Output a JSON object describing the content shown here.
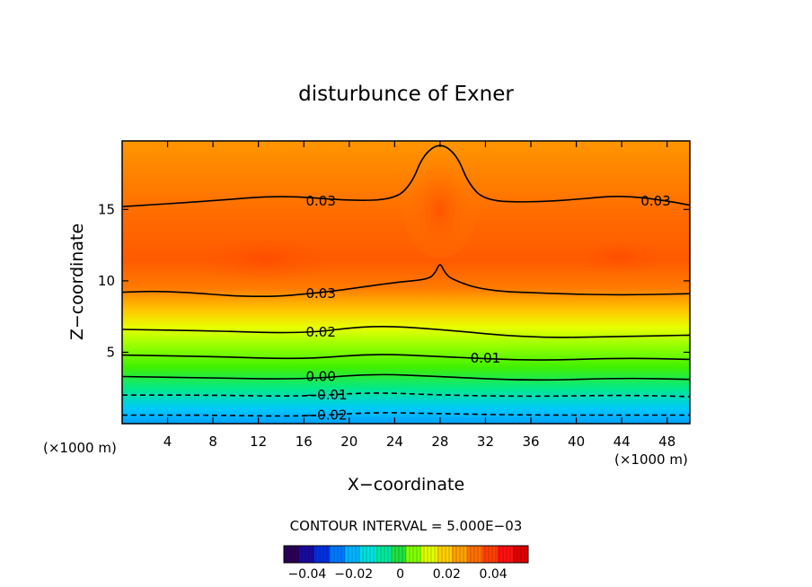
{
  "chart_data": {
    "type": "heatmap",
    "title": "disturbunce of Exner",
    "xlabel": "X−coordinate",
    "ylabel": "Z−coordinate",
    "x_unit_left": "(×1000 m)",
    "x_unit_right": "(×1000 m)",
    "xlim": [
      0,
      50
    ],
    "ylim": [
      0,
      19.8
    ],
    "x_ticks": [
      4,
      8,
      12,
      16,
      20,
      24,
      28,
      32,
      36,
      40,
      44,
      48
    ],
    "y_ticks": [
      5,
      10,
      15
    ],
    "contour_interval_text": "CONTOUR INTERVAL = 5.000E−03",
    "contour_labels": [
      {
        "text": "0.03",
        "x": 17.5,
        "z": 15.6
      },
      {
        "text": "0.03",
        "x": 47.0,
        "z": 15.6
      },
      {
        "text": "0.03",
        "x": 17.5,
        "z": 9.1
      },
      {
        "text": "0.02",
        "x": 17.5,
        "z": 6.4
      },
      {
        "text": "0.01",
        "x": 32.0,
        "z": 4.6
      },
      {
        "text": "0.00",
        "x": 17.5,
        "z": 3.3
      },
      {
        "text": "−0.01",
        "x": 18.0,
        "z": 2.0
      },
      {
        "text": "−0.02",
        "x": 18.0,
        "z": 0.6
      }
    ],
    "contour_lines": [
      {
        "level": 0.03,
        "style": "solid",
        "points": [
          [
            0,
            15.2
          ],
          [
            8,
            15.6
          ],
          [
            14,
            16.0
          ],
          [
            20,
            15.6
          ],
          [
            24,
            15.7
          ],
          [
            25.5,
            16.8
          ],
          [
            26.5,
            18.8
          ],
          [
            28,
            19.7
          ],
          [
            29.5,
            18.8
          ],
          [
            30.5,
            16.8
          ],
          [
            32,
            15.6
          ],
          [
            36,
            15.5
          ],
          [
            40,
            15.7
          ],
          [
            44,
            16.0
          ],
          [
            48,
            15.6
          ],
          [
            50,
            15.3
          ]
        ]
      },
      {
        "level": 0.03,
        "style": "solid",
        "points": [
          [
            0,
            9.2
          ],
          [
            4,
            9.3
          ],
          [
            12,
            8.8
          ],
          [
            18,
            9.2
          ],
          [
            24,
            9.9
          ],
          [
            27,
            10.1
          ],
          [
            27.6,
            10.6
          ],
          [
            28,
            11.3
          ],
          [
            28.4,
            10.6
          ],
          [
            29,
            10.1
          ],
          [
            32,
            9.3
          ],
          [
            38,
            9.1
          ],
          [
            44,
            9.0
          ],
          [
            50,
            9.1
          ]
        ]
      },
      {
        "level": 0.02,
        "style": "solid",
        "points": [
          [
            0,
            6.6
          ],
          [
            8,
            6.5
          ],
          [
            16,
            6.3
          ],
          [
            22,
            6.9
          ],
          [
            28,
            6.6
          ],
          [
            36,
            6.0
          ],
          [
            44,
            6.1
          ],
          [
            50,
            6.2
          ]
        ]
      },
      {
        "level": 0.01,
        "style": "solid",
        "points": [
          [
            0,
            4.8
          ],
          [
            8,
            4.7
          ],
          [
            16,
            4.5
          ],
          [
            22,
            4.9
          ],
          [
            28,
            4.7
          ],
          [
            36,
            4.4
          ],
          [
            44,
            4.6
          ],
          [
            50,
            4.5
          ]
        ]
      },
      {
        "level": 0.0,
        "style": "solid",
        "points": [
          [
            0,
            3.3
          ],
          [
            8,
            3.2
          ],
          [
            16,
            3.1
          ],
          [
            22,
            3.5
          ],
          [
            28,
            3.3
          ],
          [
            36,
            3.0
          ],
          [
            44,
            3.2
          ],
          [
            50,
            3.1
          ]
        ]
      },
      {
        "level": -0.01,
        "style": "dashed",
        "points": [
          [
            0,
            2.0
          ],
          [
            8,
            2.0
          ],
          [
            16,
            1.9
          ],
          [
            22,
            2.2
          ],
          [
            28,
            2.0
          ],
          [
            36,
            1.9
          ],
          [
            44,
            2.0
          ],
          [
            50,
            1.9
          ]
        ]
      },
      {
        "level": -0.02,
        "style": "dashed",
        "points": [
          [
            0,
            0.6
          ],
          [
            8,
            0.6
          ],
          [
            16,
            0.5
          ],
          [
            22,
            0.8
          ],
          [
            28,
            0.7
          ],
          [
            36,
            0.6
          ],
          [
            44,
            0.6
          ],
          [
            50,
            0.6
          ]
        ]
      }
    ],
    "colorbar": {
      "min": -0.05,
      "max": 0.055,
      "ticks": [
        {
          "value": -0.04,
          "label": "−0.04"
        },
        {
          "value": -0.02,
          "label": "−0.02"
        },
        {
          "value": 0,
          "label": "0"
        },
        {
          "value": 0.02,
          "label": "0.02"
        },
        {
          "value": 0.04,
          "label": "0.04"
        }
      ],
      "colors": [
        "#2a0058",
        "#1a0aa0",
        "#0030e0",
        "#0078ff",
        "#00b4ff",
        "#00e0e0",
        "#00e8a0",
        "#20e040",
        "#80ff00",
        "#e0ff00",
        "#ffd000",
        "#ffa000",
        "#ff7000",
        "#ff4000",
        "#ff1010",
        "#e00000"
      ]
    }
  }
}
